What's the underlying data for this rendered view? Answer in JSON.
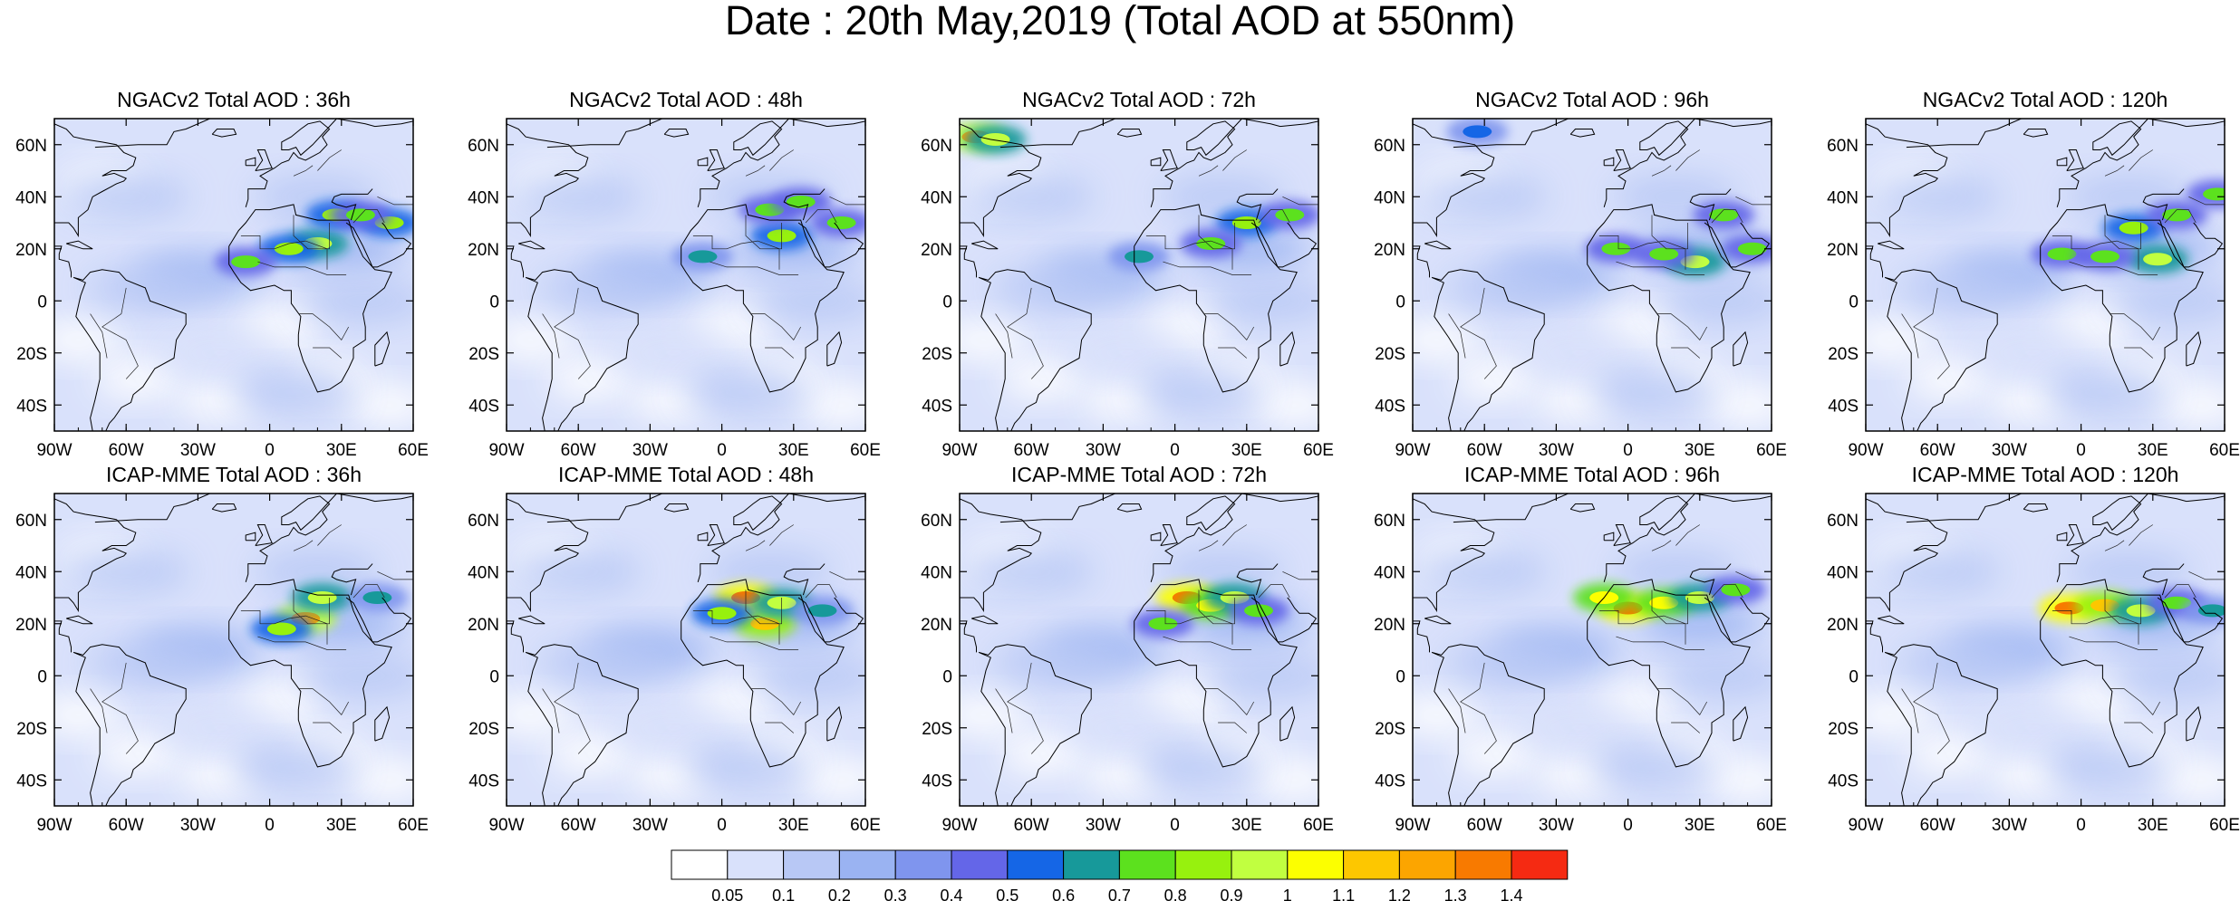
{
  "figure_title": "Date : 20th May,2019 (Total AOD at 550nm)",
  "projection": "cylindrical-equidistant",
  "lon_range": [
    -90,
    60
  ],
  "lat_range": [
    -50,
    70
  ],
  "lon_ticks": [
    {
      "value": -90,
      "label": "90W"
    },
    {
      "value": -60,
      "label": "60W"
    },
    {
      "value": -30,
      "label": "30W"
    },
    {
      "value": 0,
      "label": "0"
    },
    {
      "value": 30,
      "label": "30E"
    },
    {
      "value": 60,
      "label": "60E"
    }
  ],
  "lat_ticks": [
    {
      "value": 60,
      "label": "60N"
    },
    {
      "value": 40,
      "label": "40N"
    },
    {
      "value": 20,
      "label": "20N"
    },
    {
      "value": 0,
      "label": "0"
    },
    {
      "value": -20,
      "label": "20S"
    },
    {
      "value": -40,
      "label": "40S"
    }
  ],
  "panels": [
    {
      "title": "NGACv2 Total AOD : 36h",
      "row": 0,
      "col": 0
    },
    {
      "title": "NGACv2 Total AOD : 48h",
      "row": 0,
      "col": 1
    },
    {
      "title": "NGACv2 Total AOD : 72h",
      "row": 0,
      "col": 2
    },
    {
      "title": "NGACv2 Total AOD : 96h",
      "row": 0,
      "col": 3
    },
    {
      "title": "NGACv2 Total AOD : 120h",
      "row": 0,
      "col": 4
    },
    {
      "title": "ICAP-MME Total AOD : 36h",
      "row": 1,
      "col": 0
    },
    {
      "title": "ICAP-MME Total AOD : 48h",
      "row": 1,
      "col": 1
    },
    {
      "title": "ICAP-MME Total AOD : 72h",
      "row": 1,
      "col": 2
    },
    {
      "title": "ICAP-MME Total AOD : 96h",
      "row": 1,
      "col": 3
    },
    {
      "title": "ICAP-MME Total AOD : 120h",
      "row": 1,
      "col": 4
    }
  ],
  "colorbar": {
    "colors": [
      "#ffffff",
      "#d9e1fb",
      "#b8c8f5",
      "#9ab3f2",
      "#7f95ee",
      "#6466e8",
      "#1566e6",
      "#17999a",
      "#5ce11e",
      "#97f10e",
      "#c1ff40",
      "#fcff00",
      "#fdc700",
      "#fca500",
      "#f87a00",
      "#f52a12"
    ],
    "labels": [
      "0.05",
      "0.1",
      "0.2",
      "0.3",
      "0.4",
      "0.5",
      "0.6",
      "0.7",
      "0.8",
      "0.9",
      "1",
      "1.1",
      "1.2",
      "1.3",
      "1.4"
    ]
  },
  "plumes": [
    {
      "panel": 0,
      "lon": 20,
      "lat": 22,
      "level": 10
    },
    {
      "panel": 0,
      "lon": 8,
      "lat": 20,
      "level": 9
    },
    {
      "panel": 0,
      "lon": 28,
      "lat": 33,
      "level": 9
    },
    {
      "panel": 0,
      "lon": 50,
      "lat": 30,
      "level": 9
    },
    {
      "panel": 0,
      "lon": 38,
      "lat": 33,
      "level": 8
    },
    {
      "panel": 0,
      "lon": -10,
      "lat": 15,
      "level": 8
    },
    {
      "panel": 1,
      "lon": 25,
      "lat": 25,
      "level": 9
    },
    {
      "panel": 1,
      "lon": 20,
      "lat": 35,
      "level": 8
    },
    {
      "panel": 1,
      "lon": 33,
      "lat": 38,
      "level": 8
    },
    {
      "panel": 1,
      "lon": 50,
      "lat": 30,
      "level": 8
    },
    {
      "panel": 1,
      "lon": -8,
      "lat": 17,
      "level": 7
    },
    {
      "panel": 2,
      "lon": 30,
      "lat": 30,
      "level": 9
    },
    {
      "panel": 2,
      "lon": 15,
      "lat": 22,
      "level": 8
    },
    {
      "panel": 2,
      "lon": 48,
      "lat": 33,
      "level": 8
    },
    {
      "panel": 2,
      "lon": -83,
      "lat": 63,
      "level": 13
    },
    {
      "panel": 2,
      "lon": -75,
      "lat": 62,
      "level": 10
    },
    {
      "panel": 2,
      "lon": -15,
      "lat": 17,
      "level": 7
    },
    {
      "panel": 3,
      "lon": 28,
      "lat": 15,
      "level": 10
    },
    {
      "panel": 3,
      "lon": -5,
      "lat": 20,
      "level": 8
    },
    {
      "panel": 3,
      "lon": 15,
      "lat": 18,
      "level": 8
    },
    {
      "panel": 3,
      "lon": 40,
      "lat": 33,
      "level": 8
    },
    {
      "panel": 3,
      "lon": 52,
      "lat": 20,
      "level": 8
    },
    {
      "panel": 3,
      "lon": -63,
      "lat": 65,
      "level": 6
    },
    {
      "panel": 4,
      "lon": 22,
      "lat": 28,
      "level": 9
    },
    {
      "panel": 4,
      "lon": 32,
      "lat": 16,
      "level": 10
    },
    {
      "panel": 4,
      "lon": -8,
      "lat": 18,
      "level": 8
    },
    {
      "panel": 4,
      "lon": 10,
      "lat": 17,
      "level": 8
    },
    {
      "panel": 4,
      "lon": 40,
      "lat": 33,
      "level": 8
    },
    {
      "panel": 4,
      "lon": 57,
      "lat": 41,
      "level": 8
    },
    {
      "panel": 5,
      "lon": 15,
      "lat": 22,
      "level": 13
    },
    {
      "panel": 5,
      "lon": 22,
      "lat": 30,
      "level": 10
    },
    {
      "panel": 5,
      "lon": 5,
      "lat": 18,
      "level": 9
    },
    {
      "panel": 5,
      "lon": 45,
      "lat": 30,
      "level": 7
    },
    {
      "panel": 6,
      "lon": 10,
      "lat": 30,
      "level": 14
    },
    {
      "panel": 6,
      "lon": 18,
      "lat": 20,
      "level": 12
    },
    {
      "panel": 6,
      "lon": 25,
      "lat": 28,
      "level": 10
    },
    {
      "panel": 6,
      "lon": 0,
      "lat": 24,
      "level": 9
    },
    {
      "panel": 6,
      "lon": 42,
      "lat": 25,
      "level": 7
    },
    {
      "panel": 7,
      "lon": 5,
      "lat": 30,
      "level": 14
    },
    {
      "panel": 7,
      "lon": 15,
      "lat": 27,
      "level": 11
    },
    {
      "panel": 7,
      "lon": 25,
      "lat": 30,
      "level": 10
    },
    {
      "panel": 7,
      "lon": 35,
      "lat": 25,
      "level": 8
    },
    {
      "panel": 7,
      "lon": -5,
      "lat": 20,
      "level": 8
    },
    {
      "panel": 8,
      "lon": 0,
      "lat": 26,
      "level": 14
    },
    {
      "panel": 8,
      "lon": -10,
      "lat": 30,
      "level": 11
    },
    {
      "panel": 8,
      "lon": 15,
      "lat": 28,
      "level": 11
    },
    {
      "panel": 8,
      "lon": 30,
      "lat": 30,
      "level": 10
    },
    {
      "panel": 8,
      "lon": 45,
      "lat": 33,
      "level": 8
    },
    {
      "panel": 9,
      "lon": -5,
      "lat": 26,
      "level": 14
    },
    {
      "panel": 9,
      "lon": 10,
      "lat": 27,
      "level": 12
    },
    {
      "panel": 9,
      "lon": 25,
      "lat": 25,
      "level": 10
    },
    {
      "panel": 9,
      "lon": 40,
      "lat": 28,
      "level": 8
    },
    {
      "panel": 9,
      "lon": 55,
      "lat": 25,
      "level": 7
    }
  ],
  "haze": [
    {
      "lon": -30,
      "lat": 10,
      "level": 3
    },
    {
      "lon": 30,
      "lat": 20,
      "level": 3
    },
    {
      "lon": 20,
      "lat": 40,
      "level": 2
    },
    {
      "lon": -60,
      "lat": 40,
      "level": 2
    },
    {
      "lon": -50,
      "lat": 5,
      "level": 2
    },
    {
      "lon": 40,
      "lat": 0,
      "level": 2
    },
    {
      "lon": -20,
      "lat": -20,
      "level": 1
    },
    {
      "lon": 10,
      "lat": -35,
      "level": 2
    }
  ]
}
